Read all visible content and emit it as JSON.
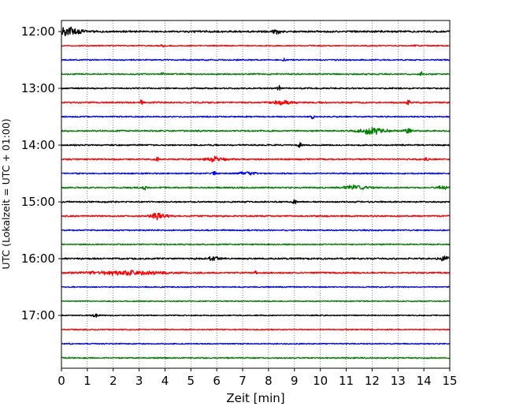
{
  "chart_data": {
    "type": "line",
    "subtype": "seismogram-helicorder",
    "xlabel": "Zeit  [min]",
    "ylabel": "UTC (Lokalzeit = UTC + 01:00)",
    "xlim": [
      0,
      15
    ],
    "x_ticks": [
      "0",
      "1",
      "2",
      "3",
      "4",
      "5",
      "6",
      "7",
      "8",
      "9",
      "10",
      "11",
      "12",
      "13",
      "14",
      "15"
    ],
    "y_tick_labels": [
      "12:00",
      "13:00",
      "14:00",
      "15:00",
      "16:00",
      "17:00"
    ],
    "row_interval_min": 15,
    "grid": "vertical-dotted",
    "trace_colors": [
      "#000000",
      "#ff0000",
      "#0000ff",
      "#008000"
    ],
    "rows": [
      {
        "start": "12:00",
        "color": "#000000",
        "amplitude": 1.0,
        "events": [
          {
            "t": 0.1,
            "a": 3.2,
            "w": 0.6
          },
          {
            "t": 8.3,
            "a": 1.4,
            "w": 0.15
          }
        ]
      },
      {
        "start": "12:15",
        "color": "#ff0000",
        "amplitude": 0.6,
        "events": [
          {
            "t": 3.9,
            "a": 1.4,
            "w": 0.05
          },
          {
            "t": 13.7,
            "a": 1.6,
            "w": 0.05
          }
        ]
      },
      {
        "start": "12:30",
        "color": "#0000ff",
        "amplitude": 0.7,
        "events": [
          {
            "t": 8.6,
            "a": 1.3,
            "w": 0.05
          }
        ]
      },
      {
        "start": "12:45",
        "color": "#008000",
        "amplitude": 0.8,
        "events": [
          {
            "t": 3.9,
            "a": 1.2,
            "w": 0.05
          },
          {
            "t": 13.9,
            "a": 1.2,
            "w": 0.05
          }
        ]
      },
      {
        "start": "13:00",
        "color": "#000000",
        "amplitude": 0.8,
        "events": [
          {
            "t": 8.4,
            "a": 1.8,
            "w": 0.06
          }
        ]
      },
      {
        "start": "13:15",
        "color": "#ff0000",
        "amplitude": 0.8,
        "events": [
          {
            "t": 3.1,
            "a": 1.8,
            "w": 0.06
          },
          {
            "t": 8.6,
            "a": 1.4,
            "w": 0.4
          },
          {
            "t": 13.4,
            "a": 1.8,
            "w": 0.06
          }
        ]
      },
      {
        "start": "13:30",
        "color": "#0000ff",
        "amplitude": 0.7,
        "events": [
          {
            "t": 9.7,
            "a": 1.4,
            "w": 0.06
          }
        ]
      },
      {
        "start": "13:45",
        "color": "#008000",
        "amplitude": 0.8,
        "events": [
          {
            "t": 12.0,
            "a": 2.2,
            "w": 0.5
          },
          {
            "t": 13.4,
            "a": 1.8,
            "w": 0.15
          }
        ]
      },
      {
        "start": "14:00",
        "color": "#000000",
        "amplitude": 0.8,
        "events": [
          {
            "t": 9.2,
            "a": 1.6,
            "w": 0.06
          }
        ]
      },
      {
        "start": "14:15",
        "color": "#ff0000",
        "amplitude": 0.8,
        "events": [
          {
            "t": 3.7,
            "a": 1.5,
            "w": 0.06
          },
          {
            "t": 5.9,
            "a": 1.4,
            "w": 0.4
          },
          {
            "t": 14.1,
            "a": 1.6,
            "w": 0.06
          }
        ]
      },
      {
        "start": "14:30",
        "color": "#0000ff",
        "amplitude": 0.7,
        "events": [
          {
            "t": 5.9,
            "a": 1.4,
            "w": 0.06
          },
          {
            "t": 7.2,
            "a": 1.2,
            "w": 0.3
          }
        ]
      },
      {
        "start": "14:45",
        "color": "#008000",
        "amplitude": 0.8,
        "events": [
          {
            "t": 3.2,
            "a": 1.8,
            "w": 0.06
          },
          {
            "t": 11.4,
            "a": 1.6,
            "w": 0.5
          },
          {
            "t": 14.7,
            "a": 1.2,
            "w": 0.2
          }
        ]
      },
      {
        "start": "15:00",
        "color": "#000000",
        "amplitude": 0.8,
        "events": [
          {
            "t": 9.0,
            "a": 2.0,
            "w": 0.06
          }
        ]
      },
      {
        "start": "15:15",
        "color": "#ff0000",
        "amplitude": 0.8,
        "events": [
          {
            "t": 3.8,
            "a": 2.2,
            "w": 0.3
          }
        ]
      },
      {
        "start": "15:30",
        "color": "#0000ff",
        "amplitude": 0.7,
        "events": []
      },
      {
        "start": "15:45",
        "color": "#008000",
        "amplitude": 0.7,
        "events": []
      },
      {
        "start": "16:00",
        "color": "#000000",
        "amplitude": 0.9,
        "events": [
          {
            "t": 5.9,
            "a": 1.5,
            "w": 0.2
          },
          {
            "t": 14.8,
            "a": 1.3,
            "w": 0.2
          }
        ]
      },
      {
        "start": "16:15",
        "color": "#ff0000",
        "amplitude": 0.8,
        "events": [
          {
            "t": 2.5,
            "a": 1.3,
            "w": 1.5
          },
          {
            "t": 7.5,
            "a": 1.4,
            "w": 0.05
          }
        ]
      },
      {
        "start": "16:30",
        "color": "#0000ff",
        "amplitude": 0.6,
        "events": []
      },
      {
        "start": "16:45",
        "color": "#008000",
        "amplitude": 0.6,
        "events": []
      },
      {
        "start": "17:00",
        "color": "#000000",
        "amplitude": 0.6,
        "events": [
          {
            "t": 1.3,
            "a": 1.3,
            "w": 0.1
          }
        ]
      },
      {
        "start": "17:15",
        "color": "#ff0000",
        "amplitude": 0.6,
        "events": []
      },
      {
        "start": "17:30",
        "color": "#0000ff",
        "amplitude": 0.6,
        "events": []
      },
      {
        "start": "17:45",
        "color": "#008000",
        "amplitude": 0.7,
        "events": []
      }
    ]
  }
}
